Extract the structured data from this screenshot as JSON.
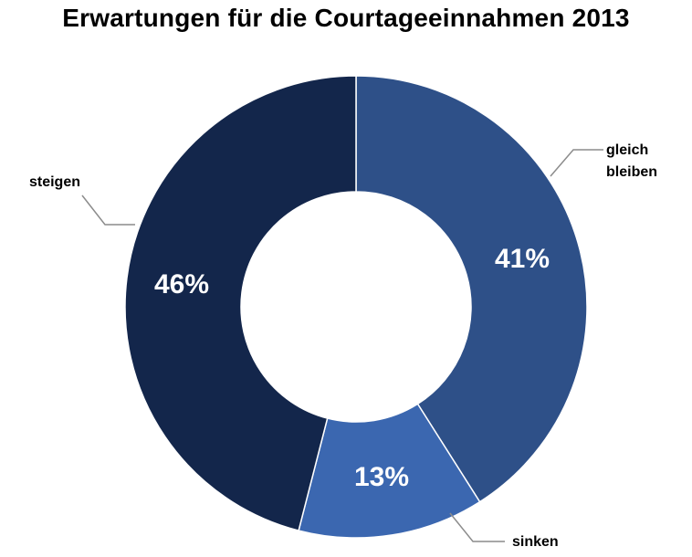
{
  "chart_data": {
    "type": "pie",
    "title": "Erwartungen für die Courtageeinnahmen 2013",
    "donut": true,
    "legend": "none",
    "categories": [
      "gleich bleiben",
      "sinken",
      "steigen"
    ],
    "category_lines": [
      [
        "gleich",
        "bleiben"
      ],
      [
        "sinken"
      ],
      [
        "steigen"
      ]
    ],
    "values": [
      41,
      13,
      46
    ],
    "value_labels": [
      "41%",
      "13%",
      "46%"
    ],
    "colors": [
      "#2E5088",
      "#3B67B0",
      "#13264B"
    ]
  }
}
